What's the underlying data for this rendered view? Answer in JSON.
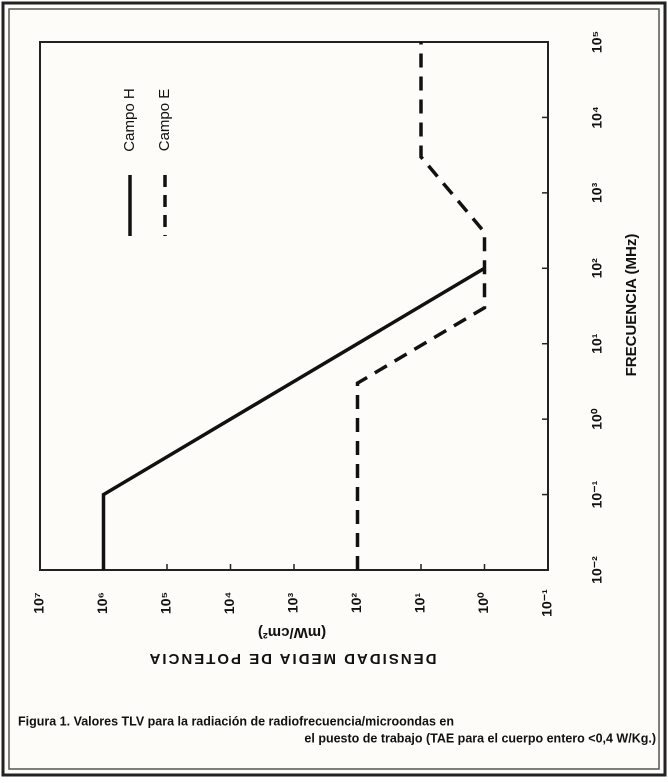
{
  "chart_data": {
    "type": "line",
    "x_label": "FRECUENCIA (MHz)",
    "y_label": "DENSIDAD MEDIA DE POTENCIA",
    "y_unit": "(mW/cm²)",
    "x_scale": "log",
    "y_scale": "log",
    "xlim": [
      0.01,
      100000
    ],
    "ylim": [
      10000000,
      0.1
    ],
    "xticks": [
      {
        "value": 0.01,
        "label": "10⁻²"
      },
      {
        "value": 0.1,
        "label": "10⁻¹"
      },
      {
        "value": 1,
        "label": "10⁰"
      },
      {
        "value": 10,
        "label": "10¹"
      },
      {
        "value": 100,
        "label": "10²"
      },
      {
        "value": 1000,
        "label": "10³"
      },
      {
        "value": 10000,
        "label": "10⁴"
      },
      {
        "value": 100000,
        "label": "10⁵"
      }
    ],
    "yticks": [
      {
        "value": 10000000,
        "label": "10⁷"
      },
      {
        "value": 1000000,
        "label": "10⁶"
      },
      {
        "value": 100000,
        "label": "10⁵"
      },
      {
        "value": 10000,
        "label": "10⁴"
      },
      {
        "value": 1000,
        "label": "10³"
      },
      {
        "value": 100,
        "label": "10²"
      },
      {
        "value": 10,
        "label": "10¹"
      },
      {
        "value": 1,
        "label": "10⁰"
      },
      {
        "value": 0.1,
        "label": "10⁻¹"
      }
    ],
    "series": [
      {
        "name": "Campo H",
        "color": "#111111",
        "dash": false,
        "x": [
          0.01,
          0.1,
          100
        ],
        "values": [
          1000000,
          1000000,
          1
        ]
      },
      {
        "name": "Campo E",
        "color": "#111111",
        "dash": true,
        "x": [
          0.01,
          3,
          30,
          300,
          3000,
          100000
        ],
        "values": [
          100,
          100,
          1,
          1,
          10,
          10
        ]
      }
    ],
    "caption": [
      "Figura 1. Valores TLV para la radiación de radiofrecuencia/microondas en",
      "el puesto de trabajo (TAE para el cuerpo entero <0,4 W/Kg.)"
    ]
  }
}
